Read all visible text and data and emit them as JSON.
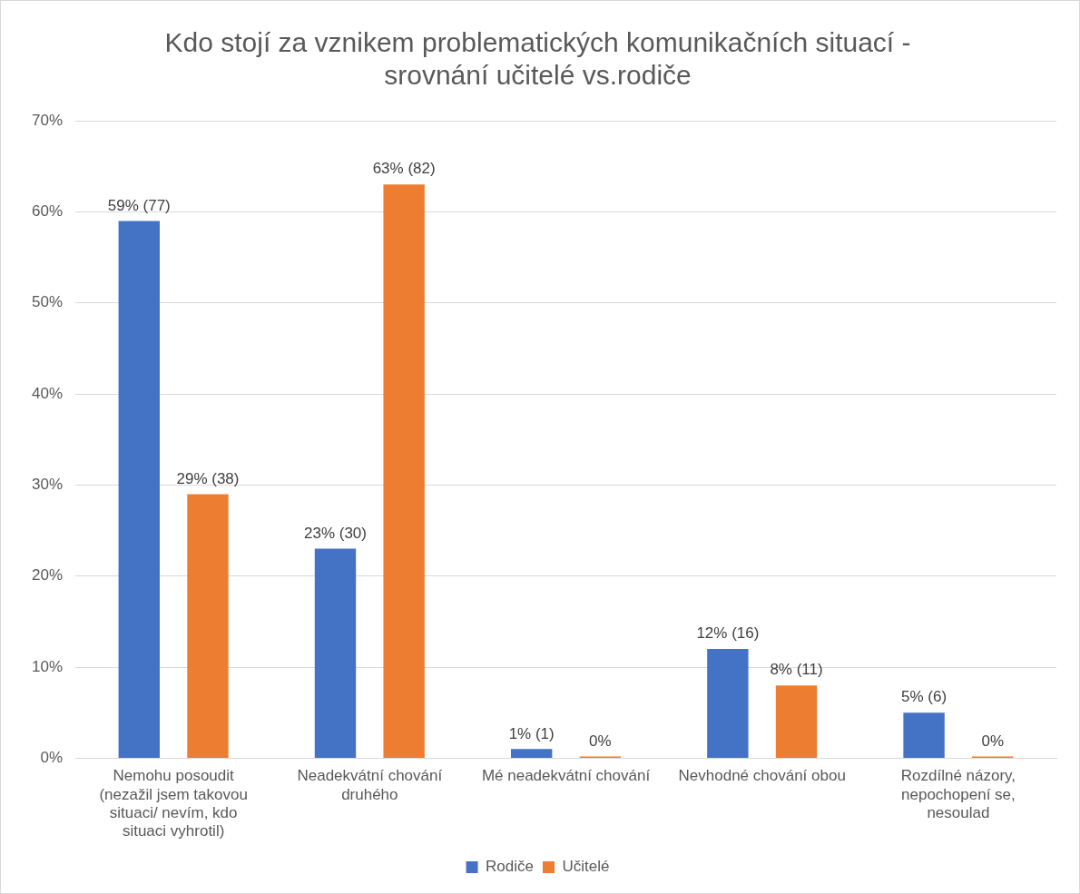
{
  "chart_data": {
    "type": "bar",
    "title": "Kdo stojí za vznikem problematických komunikačních situací - srovnání učitelé vs.rodiče",
    "categories": [
      "Nemohu posoudit (nezažil jsem takovou situaci/ nevím, kdo situaci vyhrotil)",
      "Neadekvátní chování druhého",
      "Mé neadekvátní chování",
      "Nevhodné chování obou",
      "Rozdílné názory, nepochopení se, nesoulad"
    ],
    "series": [
      {
        "name": "Rodiče",
        "color": "#4472c4",
        "values": [
          59,
          23,
          1,
          12,
          5
        ],
        "value_labels": [
          "59% (77)",
          "23% (30)",
          "1% (1)",
          "12% (16)",
          "5% (6)"
        ]
      },
      {
        "name": "Učitelé",
        "color": "#ed7d31",
        "values": [
          29,
          63,
          0,
          8,
          0
        ],
        "value_labels": [
          "29% (38)",
          "63% (82)",
          "0%",
          "8% (11)",
          "0%"
        ]
      }
    ],
    "ylim": [
      0,
      70
    ],
    "yticks": [
      {
        "value": 0,
        "label": "0%"
      },
      {
        "value": 10,
        "label": "10%"
      },
      {
        "value": 20,
        "label": "20%"
      },
      {
        "value": 30,
        "label": "30%"
      },
      {
        "value": 40,
        "label": "40%"
      },
      {
        "value": 50,
        "label": "50%"
      },
      {
        "value": 60,
        "label": "60%"
      },
      {
        "value": 70,
        "label": "70%"
      }
    ],
    "grid": "y",
    "legend": "bottom"
  }
}
